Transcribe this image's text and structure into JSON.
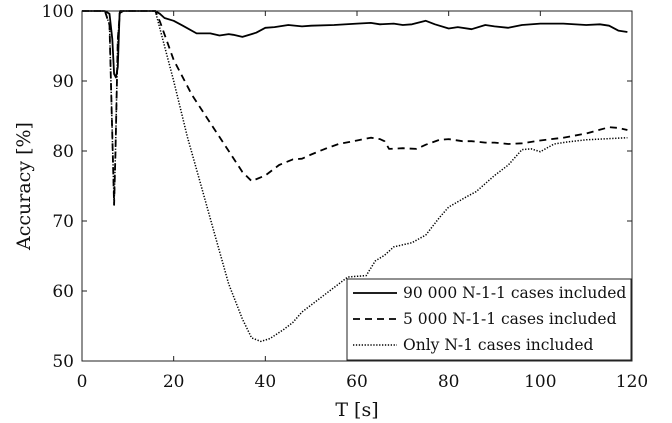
{
  "chart_data": {
    "type": "line",
    "xlabel": "T [s]",
    "ylabel": "Accuracy [%]",
    "xlim": [
      0,
      120
    ],
    "ylim": [
      50,
      100
    ],
    "xticks": [
      0,
      20,
      40,
      60,
      80,
      100,
      120
    ],
    "yticks": [
      50,
      60,
      70,
      80,
      90,
      100
    ],
    "x_tick_labels": [
      "0",
      "20",
      "40",
      "60",
      "80",
      "100",
      "120"
    ],
    "y_tick_labels": [
      "50",
      "60",
      "70",
      "80",
      "90",
      "100"
    ],
    "grid": false,
    "legend_position": "bottom-right",
    "series": [
      {
        "name": "90 000 N-1-1 cases included",
        "style": "solid",
        "color": "#000000",
        "points": [
          [
            0,
            100
          ],
          [
            5,
            100
          ],
          [
            6,
            99.6
          ],
          [
            6.6,
            96
          ],
          [
            7,
            91
          ],
          [
            7.4,
            90.5
          ],
          [
            7.8,
            92
          ],
          [
            8.2,
            99.7
          ],
          [
            9,
            100
          ],
          [
            16,
            100
          ],
          [
            17,
            99.6
          ],
          [
            18,
            99
          ],
          [
            20,
            98.6
          ],
          [
            22,
            97.9
          ],
          [
            25,
            96.8
          ],
          [
            28,
            96.8
          ],
          [
            30,
            96.5
          ],
          [
            32,
            96.7
          ],
          [
            33,
            96.6
          ],
          [
            35,
            96.3
          ],
          [
            37,
            96.7
          ],
          [
            38,
            96.9
          ],
          [
            40,
            97.6
          ],
          [
            42,
            97.7
          ],
          [
            45,
            98
          ],
          [
            48,
            97.8
          ],
          [
            50,
            97.9
          ],
          [
            55,
            98
          ],
          [
            60,
            98.2
          ],
          [
            63,
            98.3
          ],
          [
            65,
            98.1
          ],
          [
            68,
            98.2
          ],
          [
            70,
            98
          ],
          [
            72,
            98.1
          ],
          [
            75,
            98.6
          ],
          [
            77,
            98.1
          ],
          [
            80,
            97.5
          ],
          [
            82,
            97.7
          ],
          [
            85,
            97.4
          ],
          [
            88,
            98
          ],
          [
            90,
            97.8
          ],
          [
            93,
            97.6
          ],
          [
            96,
            98
          ],
          [
            100,
            98.2
          ],
          [
            105,
            98.2
          ],
          [
            110,
            98
          ],
          [
            113,
            98.1
          ],
          [
            115,
            97.9
          ],
          [
            117,
            97.2
          ],
          [
            119,
            97
          ]
        ]
      },
      {
        "name": "5 000 N-1-1 cases included",
        "style": "dashed",
        "color": "#000000",
        "points": [
          [
            0,
            100
          ],
          [
            5,
            100
          ],
          [
            6,
            98
          ],
          [
            6.7,
            80
          ],
          [
            7,
            72.3
          ],
          [
            7.3,
            80
          ],
          [
            7.8,
            96
          ],
          [
            8.3,
            100
          ],
          [
            16,
            100
          ],
          [
            17,
            98.5
          ],
          [
            20,
            93
          ],
          [
            24,
            88
          ],
          [
            28,
            84
          ],
          [
            32,
            80
          ],
          [
            35,
            77
          ],
          [
            37,
            75.7
          ],
          [
            40,
            76.5
          ],
          [
            43,
            78
          ],
          [
            46,
            78.8
          ],
          [
            48,
            78.9
          ],
          [
            50,
            79.5
          ],
          [
            53,
            80.3
          ],
          [
            56,
            81
          ],
          [
            60,
            81.5
          ],
          [
            63,
            81.9
          ],
          [
            65,
            81.7
          ],
          [
            66,
            81.4
          ],
          [
            67,
            80.3
          ],
          [
            70,
            80.4
          ],
          [
            73,
            80.3
          ],
          [
            75,
            80.9
          ],
          [
            78,
            81.6
          ],
          [
            80,
            81.7
          ],
          [
            83,
            81.4
          ],
          [
            85,
            81.4
          ],
          [
            88,
            81.2
          ],
          [
            90,
            81.2
          ],
          [
            93,
            81
          ],
          [
            96,
            81.1
          ],
          [
            100,
            81.5
          ],
          [
            105,
            81.9
          ],
          [
            110,
            82.5
          ],
          [
            115,
            83.4
          ],
          [
            117,
            83.3
          ],
          [
            119,
            83
          ]
        ]
      },
      {
        "name": "Only N-1 cases included",
        "style": "dotted",
        "color": "#000000",
        "points": [
          [
            0,
            100
          ],
          [
            5,
            100
          ],
          [
            6,
            98
          ],
          [
            6.7,
            80
          ],
          [
            7,
            72.3
          ],
          [
            7.3,
            80
          ],
          [
            7.8,
            96
          ],
          [
            8.3,
            100
          ],
          [
            16,
            100
          ],
          [
            18,
            95
          ],
          [
            20,
            90
          ],
          [
            23,
            82
          ],
          [
            26,
            75
          ],
          [
            29,
            68
          ],
          [
            32,
            61
          ],
          [
            35,
            56
          ],
          [
            37,
            53.3
          ],
          [
            39,
            52.8
          ],
          [
            41,
            53.2
          ],
          [
            44,
            54.5
          ],
          [
            46,
            55.5
          ],
          [
            48,
            57
          ],
          [
            52,
            59
          ],
          [
            55,
            60.5
          ],
          [
            58,
            62
          ],
          [
            62,
            62.2
          ],
          [
            64,
            64.3
          ],
          [
            66,
            65.1
          ],
          [
            68,
            66.3
          ],
          [
            72,
            66.9
          ],
          [
            75,
            68
          ],
          [
            78,
            70.5
          ],
          [
            80,
            72
          ],
          [
            84,
            73.5
          ],
          [
            86,
            74.2
          ],
          [
            90,
            76.5
          ],
          [
            93,
            78
          ],
          [
            96,
            80.2
          ],
          [
            98,
            80.3
          ],
          [
            100,
            79.9
          ],
          [
            103,
            81
          ],
          [
            106,
            81.3
          ],
          [
            110,
            81.6
          ],
          [
            113,
            81.7
          ],
          [
            116,
            81.8
          ],
          [
            119,
            81.9
          ]
        ]
      }
    ]
  }
}
